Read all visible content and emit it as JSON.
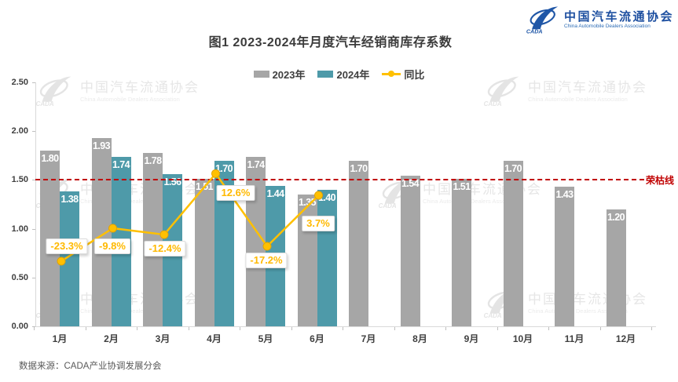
{
  "header": {
    "title": "图1  2023-2024年月度汽车经销商库存系数",
    "logo": {
      "cada": "CADA",
      "org_cn": "中国汽车流通协会",
      "org_en": "China Automobile Dealers Association"
    }
  },
  "legend": [
    {
      "label": "2023年",
      "type": "bar",
      "color": "#a6a6a6"
    },
    {
      "label": "2024年",
      "type": "bar",
      "color": "#4e9aa9"
    },
    {
      "label": "同比",
      "type": "line",
      "color": "#ffc000"
    }
  ],
  "watermark": {
    "org_cn": "中国汽车流通协会",
    "org_en": "China Automobile Dealers Association"
  },
  "chart_data": {
    "type": "bar+line",
    "title": "图1  2023-2024年月度汽车经销商库存系数",
    "categories": [
      "1月",
      "2月",
      "3月",
      "4月",
      "5月",
      "6月",
      "7月",
      "8月",
      "9月",
      "10月",
      "11月",
      "12月"
    ],
    "series": [
      {
        "name": "2023年",
        "type": "bar",
        "color": "#a6a6a6",
        "values": [
          1.8,
          1.93,
          1.78,
          1.51,
          1.74,
          1.35,
          1.7,
          1.54,
          1.51,
          1.7,
          1.43,
          1.2
        ]
      },
      {
        "name": "2024年",
        "type": "bar",
        "color": "#4e9aa9",
        "values": [
          1.38,
          1.74,
          1.56,
          1.7,
          1.44,
          1.4,
          null,
          null,
          null,
          null,
          null,
          null
        ]
      },
      {
        "name": "同比",
        "type": "line",
        "axis": "secondary",
        "color": "#ffc000",
        "values": [
          -23.3,
          -9.8,
          -12.4,
          12.6,
          -17.2,
          3.7,
          null,
          null,
          null,
          null,
          null,
          null
        ],
        "labels": [
          "-23.3%",
          "-9.8%",
          "-12.4%",
          "12.6%",
          "-17.2%",
          "3.7%"
        ]
      }
    ],
    "y_axis": {
      "min": 0,
      "max": 2.5,
      "step": 0.5,
      "tick_labels": [
        "0.00",
        "0.50",
        "1.00",
        "1.50",
        "2.00",
        "2.50"
      ]
    },
    "y2_axis": {
      "min": -50,
      "max": 50,
      "visible": false
    },
    "reference_line": {
      "value": 1.5,
      "label": "荣枯线",
      "color": "#c00000"
    },
    "grid": false,
    "legend_position": "top"
  },
  "footer": {
    "source": "数据来源：CADA产业协调发展分会"
  }
}
